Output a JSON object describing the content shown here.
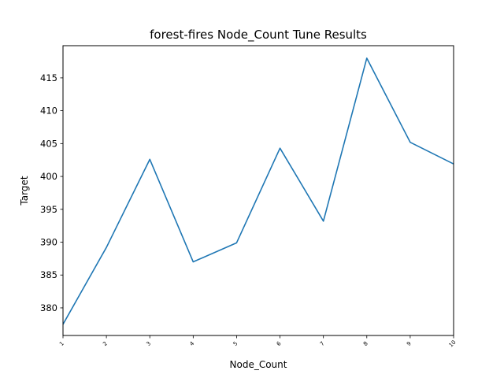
{
  "chart_data": {
    "type": "line",
    "title": "forest-fires Node_Count Tune Results",
    "xlabel": "Node_Count",
    "ylabel": "Target",
    "x": [
      1,
      2,
      3,
      4,
      5,
      6,
      7,
      8,
      9,
      10
    ],
    "xtick_labels": [
      "1",
      "2",
      "3",
      "4",
      "5",
      "6",
      "7",
      "8",
      "9",
      "10"
    ],
    "series": [
      {
        "values": [
          377.5,
          389.2,
          402.6,
          387.0,
          389.9,
          404.3,
          393.2,
          418.0,
          405.2,
          401.9
        ]
      }
    ],
    "xlim": [
      1,
      10
    ],
    "ylim": [
      375.8,
      419.9
    ],
    "yticks": [
      380,
      385,
      390,
      395,
      400,
      405,
      410,
      415
    ],
    "ytick_labels": [
      "380",
      "385",
      "390",
      "395",
      "400",
      "405",
      "410",
      "415"
    ],
    "grid": false,
    "line_color": "#1f77b4"
  }
}
